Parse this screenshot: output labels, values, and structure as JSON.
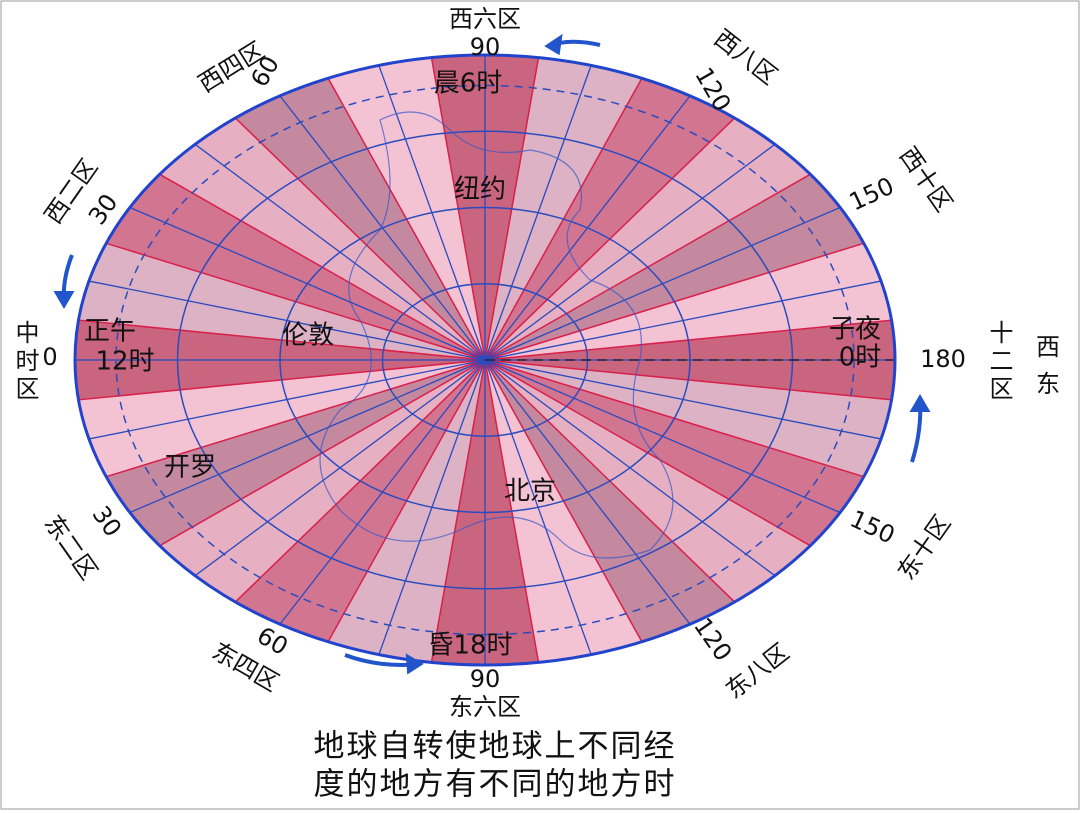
{
  "zones": {
    "top": "西六区",
    "top_meridian": "90",
    "west8": "西八区",
    "west8_meridian": "120",
    "west10": "西十区",
    "west10_meridian": "150",
    "right_meridian": "180",
    "right_zone": "十二区",
    "west_word": "西",
    "east_word": "东",
    "east10": "东十区",
    "east10_meridian": "150",
    "east8": "东八区",
    "east8_meridian": "120",
    "bottom_meridian": "90",
    "bottom": "东六区",
    "east4": "东四区",
    "east4_meridian": "60",
    "east2": "东二区",
    "east2_meridian": "30",
    "left_zone": "中时区",
    "left_meridian": "0",
    "west2": "西二区",
    "west2_meridian": "30",
    "west4": "西四区",
    "west4_meridian": "60"
  },
  "places": {
    "dawn": "晨6时",
    "new_york": "纽约",
    "london": "伦敦",
    "noon": "正午",
    "noon_time": "12时",
    "midnight": "子夜",
    "midnight_time": "0时",
    "cairo": "开罗",
    "beijing": "北京",
    "dusk": "昏18时"
  },
  "caption": [
    "地球自转使地球上不同经",
    "度的地方有不同的地方时"
  ]
}
